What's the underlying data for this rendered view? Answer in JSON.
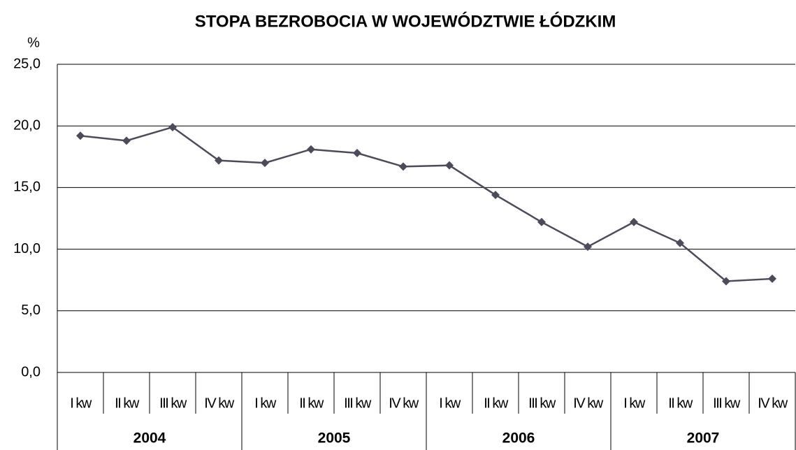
{
  "chart_data": {
    "type": "line",
    "title": "STOPA BEZROBOCIA W WOJEWÓDZTWIE ŁÓDZKIM",
    "y_label": "%",
    "categories": [
      "I kw",
      "II kw",
      "III kw",
      "IV kw",
      "I kw",
      "II kw",
      "III kw",
      "IV kw",
      "I kw",
      "II kw",
      "III kw",
      "IV kw",
      "I kw",
      "II kw",
      "III kw",
      "IV kw"
    ],
    "groups": [
      "2004",
      "2005",
      "2006",
      "2007"
    ],
    "series": [
      {
        "name": "stopa bezrobocia",
        "color": "#4b4b5c",
        "values": [
          19.2,
          18.8,
          19.9,
          17.2,
          17.0,
          18.1,
          17.8,
          16.7,
          16.8,
          14.4,
          12.2,
          10.2,
          12.2,
          10.5,
          7.4,
          7.6
        ]
      }
    ],
    "ylim": [
      0,
      25
    ],
    "yticks": [
      {
        "value": 0,
        "label": "0,0"
      },
      {
        "value": 5,
        "label": "5,0"
      },
      {
        "value": 10,
        "label": "10,0"
      },
      {
        "value": 15,
        "label": "15,0"
      },
      {
        "value": 20,
        "label": "20,0"
      },
      {
        "value": 25,
        "label": "25,0"
      }
    ],
    "grid": true
  }
}
